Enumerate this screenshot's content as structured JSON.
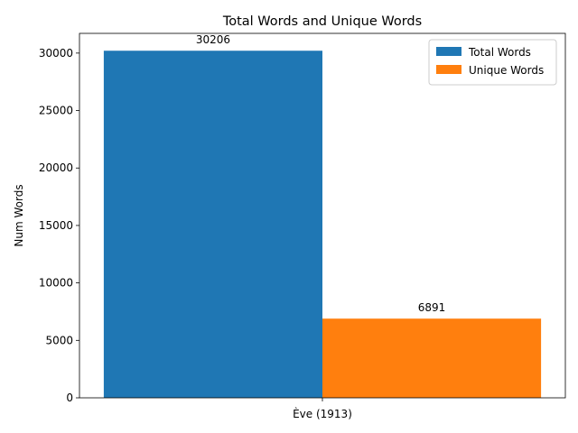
{
  "chart_data": {
    "type": "bar",
    "title": "Total Words and Unique Words",
    "xlabel": "",
    "ylabel": "Num Words",
    "categories": [
      "Ève (1913)"
    ],
    "series": [
      {
        "name": "Total Words",
        "values": [
          30206
        ],
        "color": "#1f77b4"
      },
      {
        "name": "Unique Words",
        "values": [
          6891
        ],
        "color": "#ff7f0e"
      }
    ],
    "ylim": [
      0,
      31716
    ],
    "yticks": [
      0,
      5000,
      10000,
      15000,
      20000,
      25000,
      30000
    ],
    "grid": false,
    "legend_position": "top-right",
    "data_labels": true
  }
}
